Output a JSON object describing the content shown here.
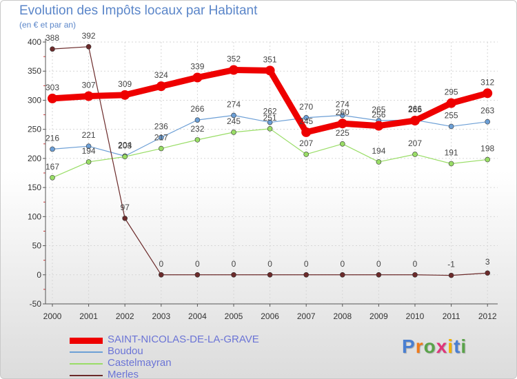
{
  "chart_data": {
    "type": "line",
    "title": "Evolution des Impôts locaux par Habitant",
    "subtitle": "(en € et par an)",
    "xlabel": "",
    "ylabel": "",
    "ylim": [
      -50,
      400
    ],
    "yticks": [
      "-50",
      "0",
      "50",
      "100",
      "150",
      "200",
      "250",
      "300",
      "350",
      "400"
    ],
    "categories": [
      "2000",
      "2001",
      "2002",
      "2003",
      "2004",
      "2005",
      "2006",
      "2007",
      "2008",
      "2009",
      "2010",
      "2011",
      "2012"
    ],
    "series": [
      {
        "name": "SAINT-NICOLAS-DE-LA-GRAVE",
        "color": "#ee0000",
        "values": [
          303,
          307,
          309,
          324,
          339,
          352,
          351,
          245,
          260,
          256,
          265,
          295,
          312
        ]
      },
      {
        "name": "Boudou",
        "color": "#6c9fd6",
        "values": [
          216,
          221,
          204,
          236,
          266,
          274,
          262,
          270,
          274,
          265,
          266,
          255,
          263
        ]
      },
      {
        "name": "Castelmayran",
        "color": "#99dd66",
        "values": [
          167,
          194,
          203,
          217,
          232,
          245,
          251,
          207,
          225,
          194,
          207,
          191,
          198
        ]
      },
      {
        "name": "Merles",
        "color": "#6b2a2a",
        "values": [
          388,
          392,
          97,
          0,
          0,
          0,
          0,
          0,
          0,
          0,
          0,
          -1,
          3
        ]
      }
    ],
    "grid": true,
    "legend_position": "bottom-left"
  },
  "brand": {
    "letters": [
      "P",
      "r",
      "o",
      "x",
      "i",
      "t",
      "i"
    ],
    "colors": [
      "#4a7fd1",
      "#f07a1a",
      "#5aa34a",
      "#e0357a",
      "#f0b000",
      "#4a7fd1",
      "#5aa34a"
    ]
  }
}
